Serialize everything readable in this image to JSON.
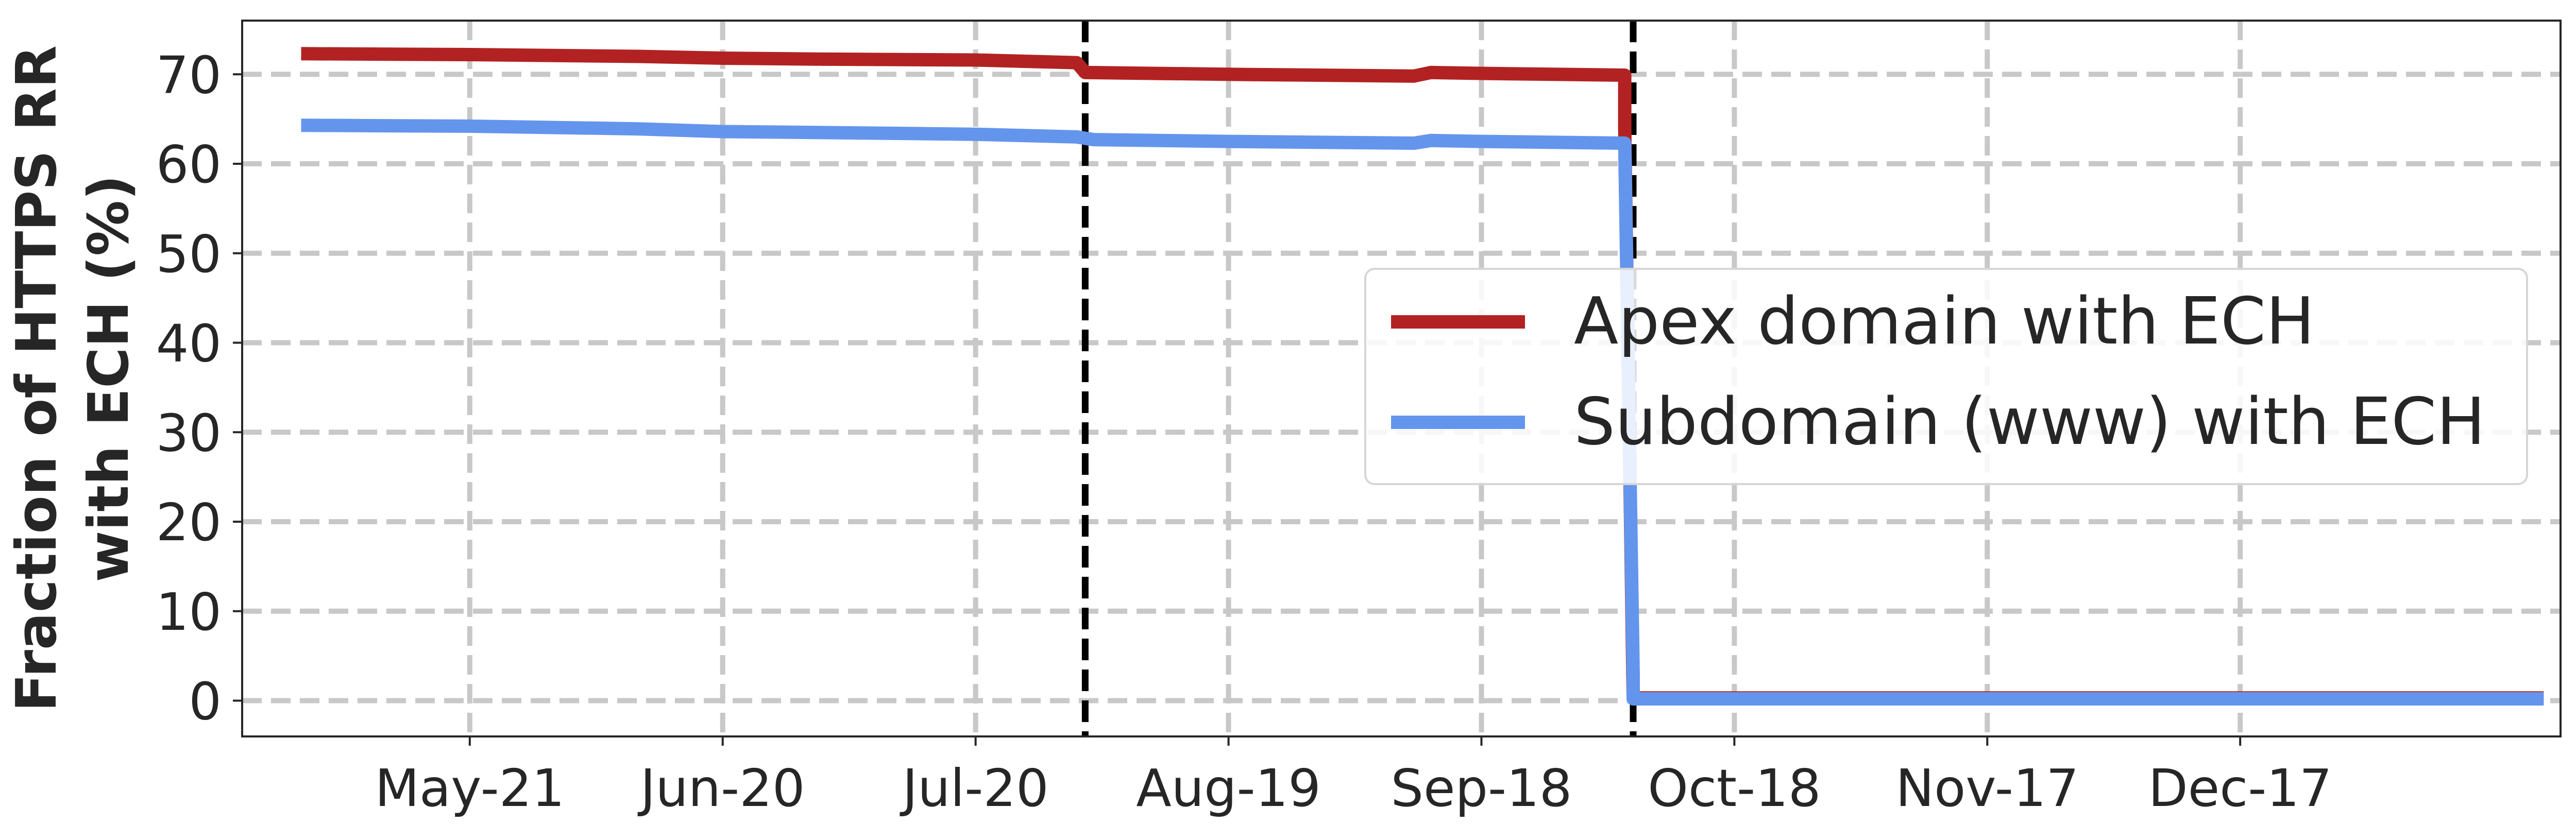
{
  "chart_data": {
    "type": "line",
    "title": "",
    "xlabel": "",
    "ylabel_lines": [
      "Fraction of HTTPS RR",
      "with ECH (%)"
    ],
    "xlim": [
      "2023-04-24",
      "2024-01-24"
    ],
    "ylim": [
      -4,
      76
    ],
    "yticks": [
      0,
      10,
      20,
      30,
      40,
      50,
      60,
      70
    ],
    "xticks": [
      {
        "label": "May-21",
        "x": "2023-05-21"
      },
      {
        "label": "Jun-20",
        "x": "2023-06-20"
      },
      {
        "label": "Jul-20",
        "x": "2023-07-20"
      },
      {
        "label": "Aug-19",
        "x": "2023-08-19"
      },
      {
        "label": "Sep-18",
        "x": "2023-09-18"
      },
      {
        "label": "Oct-18",
        "x": "2023-10-18"
      },
      {
        "label": "Nov-17",
        "x": "2023-11-17"
      },
      {
        "label": "Dec-17",
        "x": "2023-12-17"
      }
    ],
    "grid": true,
    "legend_position": "center-right",
    "vertical_markers": [
      {
        "x": "2023-08-02",
        "style": "dashed",
        "color": "#000000"
      },
      {
        "x": "2023-10-06",
        "style": "dash-dot",
        "color": "#000000"
      }
    ],
    "series": [
      {
        "name": "Apex domain with ECH",
        "color": "#b22222",
        "points": [
          [
            "2023-05-01",
            72.3
          ],
          [
            "2023-05-21",
            72.2
          ],
          [
            "2023-06-10",
            72.0
          ],
          [
            "2023-06-20",
            71.8
          ],
          [
            "2023-07-01",
            71.7
          ],
          [
            "2023-07-20",
            71.6
          ],
          [
            "2023-08-01",
            71.3
          ],
          [
            "2023-08-02",
            70.2
          ],
          [
            "2023-08-19",
            70.0
          ],
          [
            "2023-09-10",
            69.8
          ],
          [
            "2023-09-12",
            70.2
          ],
          [
            "2023-09-18",
            70.1
          ],
          [
            "2023-10-05",
            69.9
          ],
          [
            "2023-10-05",
            64.0
          ],
          [
            "2023-10-06",
            0.3
          ],
          [
            "2024-01-22",
            0.3
          ]
        ]
      },
      {
        "name": "Subdomain (www) with ECH",
        "color": "#6495ed",
        "points": [
          [
            "2023-05-01",
            64.3
          ],
          [
            "2023-05-21",
            64.2
          ],
          [
            "2023-06-10",
            63.9
          ],
          [
            "2023-06-20",
            63.6
          ],
          [
            "2023-07-01",
            63.5
          ],
          [
            "2023-07-20",
            63.3
          ],
          [
            "2023-08-01",
            63.0
          ],
          [
            "2023-08-03",
            62.7
          ],
          [
            "2023-08-19",
            62.5
          ],
          [
            "2023-09-10",
            62.3
          ],
          [
            "2023-09-12",
            62.6
          ],
          [
            "2023-09-18",
            62.5
          ],
          [
            "2023-10-05",
            62.3
          ],
          [
            "2023-10-06",
            3.0
          ],
          [
            "2023-10-06",
            0.2
          ],
          [
            "2024-01-22",
            0.2
          ]
        ]
      }
    ]
  }
}
